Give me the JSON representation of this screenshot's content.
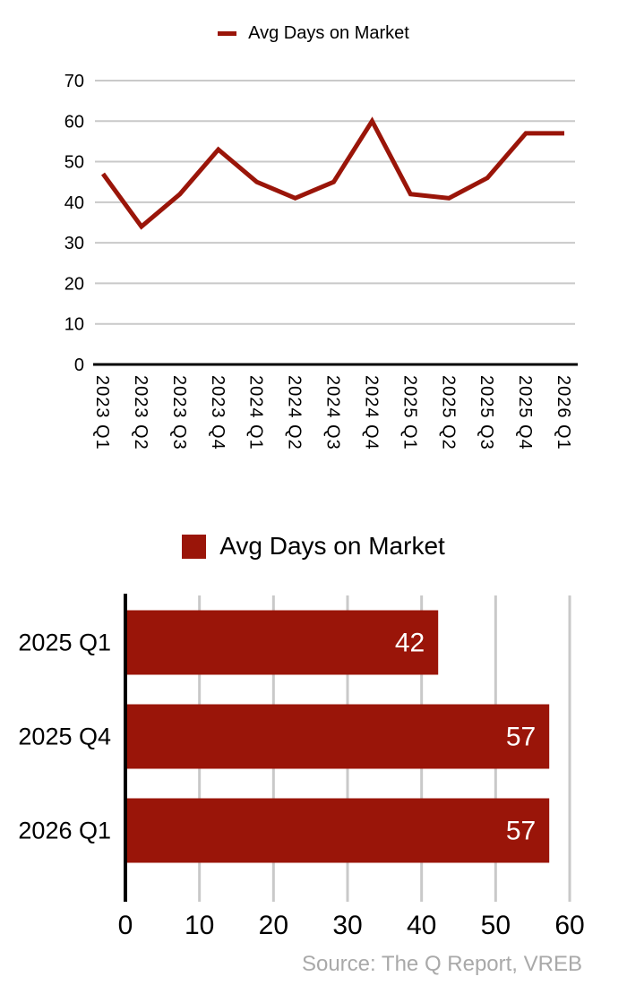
{
  "source_note": "Source: The Q Report, VREB",
  "colors": {
    "series": "#9a1509",
    "grid": "#c9c9c9",
    "axis": "#000000",
    "tick_label": "#000000",
    "value_label": "#ffffff",
    "source_text": "#a9a9a9"
  },
  "chart_data": [
    {
      "type": "line",
      "legend_label": "Avg Days on Market",
      "legend_position": "top-center",
      "categories": [
        "2023 Q1",
        "2023 Q2",
        "2023 Q3",
        "2023 Q4",
        "2024 Q1",
        "2024 Q2",
        "2024 Q3",
        "2024 Q4",
        "2025 Q1",
        "2025 Q2",
        "2025 Q3",
        "2025 Q4",
        "2026 Q1"
      ],
      "series": [
        {
          "name": "Avg Days on Market",
          "values": [
            47,
            34,
            42,
            53,
            45,
            41,
            45,
            60,
            42,
            41,
            46,
            57,
            57
          ]
        }
      ],
      "xlabel": "",
      "ylabel": "",
      "ylim": [
        0,
        70
      ],
      "ytick_step": 10,
      "grid": true,
      "xtick_rotation_deg": 90
    },
    {
      "type": "bar",
      "orientation": "horizontal",
      "legend_label": "Avg Days on Market",
      "legend_position": "top-center",
      "categories": [
        "2025 Q1",
        "2025 Q4",
        "2026 Q1"
      ],
      "values": [
        42,
        57,
        57
      ],
      "data_labels": true,
      "xlabel": "",
      "ylabel": "",
      "xlim": [
        0,
        60
      ],
      "xtick_step": 10,
      "grid": true
    }
  ]
}
